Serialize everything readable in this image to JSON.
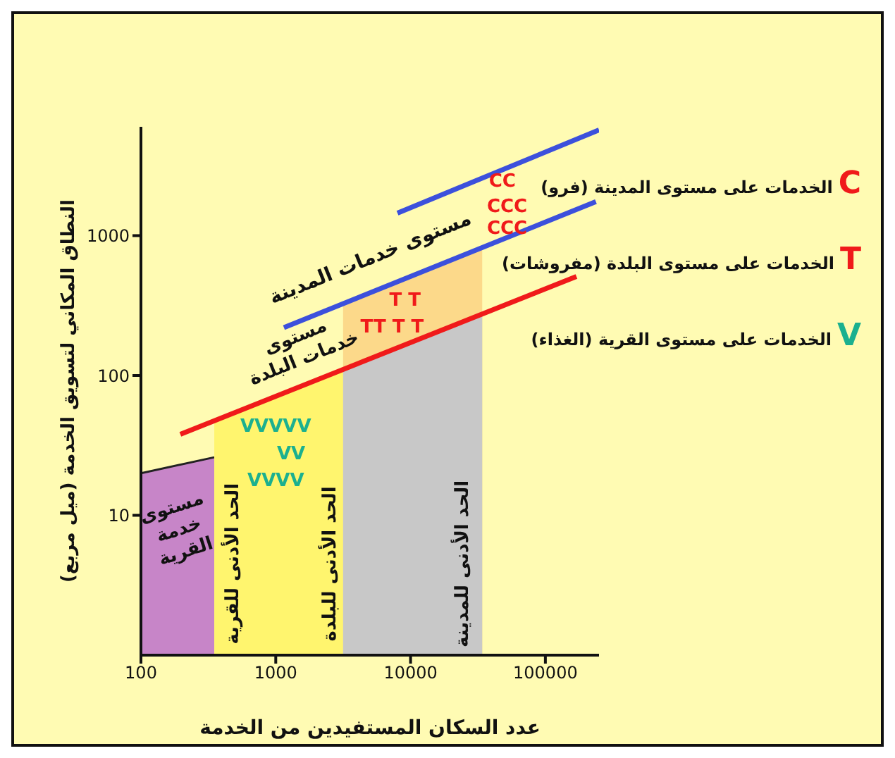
{
  "chart_data": {
    "type": "area",
    "xlabel": "عدد السكان المستفيدين من الخدمة",
    "ylabel": "النطاق المكاني لتسويق الخدمة (ميل مربع)",
    "log": "xy",
    "legend": false,
    "xlim": [
      100,
      250000
    ],
    "xticks": [
      100,
      1000,
      10000,
      100000
    ],
    "ylim": [
      1,
      6000
    ],
    "yticks": [
      10,
      100,
      1000
    ],
    "series": [
      {
        "color": "#c785c8",
        "x": [
          100,
          350
        ],
        "values": [
          20,
          26
        ]
      },
      {
        "color": "#fff56e",
        "x": [
          350,
          3160
        ],
        "values": [
          47,
          110
        ]
      },
      {
        "color": "#fcd98a",
        "x": [
          3160,
          34000
        ],
        "values": [
          324,
          817
        ]
      },
      {
        "color": "#c8c8c8",
        "x": [
          3160,
          34000
        ],
        "values": [
          110,
          275
        ]
      },
      {
        "type": "line",
        "color": "#f01a1a",
        "x": [
          196,
          170000
        ],
        "values": [
          38,
          510
        ]
      },
      {
        "type": "line",
        "color": "#3c50dc",
        "x": [
          1150,
          237000
        ],
        "values": [
          220,
          1750
        ]
      },
      {
        "type": "line",
        "color": "#3c50dc",
        "x": [
          8000,
          250000
        ],
        "values": [
          1450,
          5700
        ]
      }
    ],
    "annotations": [
      "مستوى\nخدمة\nالقرية",
      "مستوى\nخدمات البلدة",
      "مستوى خدمات المدينة",
      "الحد الأدنى للقرية",
      "الحد الأدنى للبلدة",
      "الحد الأدنى للمدينة",
      "VVVVV",
      "VV",
      "VVVV",
      "T T",
      "TT T T",
      "CC",
      "CCC",
      "CCC",
      "C الخدمات على مستوى المدينة (فرو)",
      "T الخدمات على مستوى البلدة (مفروشات)",
      "V الخدمات على مستوى القرية (الغذاء)"
    ]
  }
}
